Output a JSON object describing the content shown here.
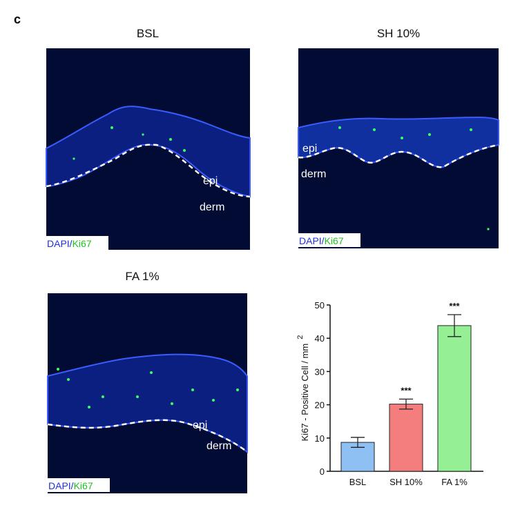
{
  "panel_label": "c",
  "images": [
    {
      "title": "BSL",
      "epi": "epi",
      "derm": "derm",
      "stain_dapi": "DAPI/",
      "stain_ki67": "Ki67"
    },
    {
      "title": "SH 10%",
      "epi": "epi",
      "derm": "derm",
      "stain_dapi": "DAPI/",
      "stain_ki67": "Ki67"
    },
    {
      "title": "FA 1%",
      "epi": "epi",
      "derm": "derm",
      "stain_dapi": "DAPI/",
      "stain_ki67": "Ki67"
    }
  ],
  "chart_data": {
    "type": "bar",
    "ylabel": "Ki67 - Positive Cell / mm",
    "ylabel_superscript": "2",
    "categories": [
      "BSL",
      "SH 10%",
      "FA 1%"
    ],
    "values": [
      8.7,
      20.2,
      43.8
    ],
    "errors": [
      1.5,
      1.5,
      3.3
    ],
    "significance": [
      null,
      "***",
      "***"
    ],
    "colors": [
      "#8fc0f4",
      "#f47e7e",
      "#95f095"
    ],
    "ylim": [
      0,
      50
    ],
    "yticks": [
      0,
      10,
      20,
      30,
      40,
      50
    ]
  }
}
